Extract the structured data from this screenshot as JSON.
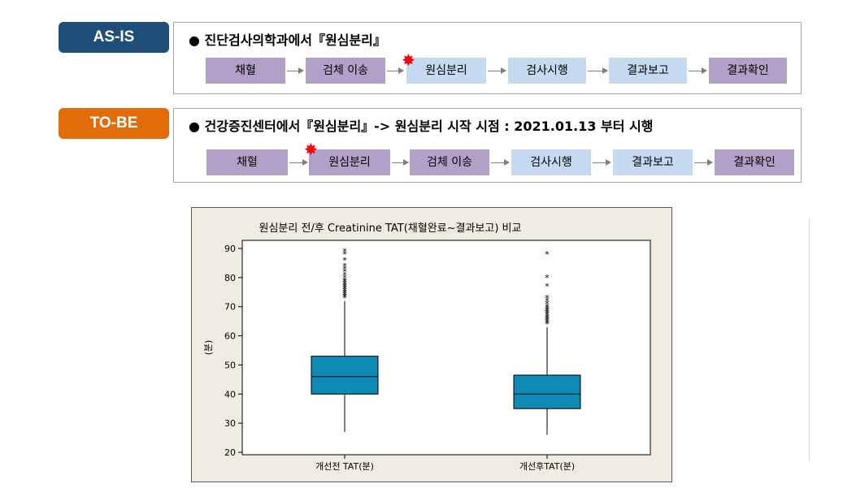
{
  "asis": {
    "badge": "AS-IS",
    "heading": "● 진단검사의학과에서『원심분리』",
    "steps": [
      "채혈",
      "검체 이송",
      "원심분리",
      "검사시행",
      "결과보고",
      "결과확인"
    ]
  },
  "tobe": {
    "badge": "TO-BE",
    "heading": "● 건강증진센터에서『원심분리』-> 원심분리 시작 시점 :  2021.01.13 부터 시행",
    "steps": [
      "채혈",
      "원심분리",
      "검체 이송",
      "검사시행",
      "결과보고",
      "결과확인"
    ]
  },
  "colors": {
    "asis_badge": "#1f4e79",
    "tobe_badge": "#e36c0a",
    "step_purple": "#b1a0c7",
    "step_blue": "#c5d9f1",
    "box": "#0f8ab5",
    "star": "#ff0000"
  },
  "icons": {
    "marker": "red-star-icon"
  },
  "chart_data": {
    "type": "boxplot",
    "title": "원심분리 전/후 Creatinine TAT(채혈완료~결과보고) 비교",
    "xlabel": "",
    "ylabel": "(분)",
    "ylim": [
      20,
      92
    ],
    "yticks": [
      20,
      30,
      40,
      50,
      60,
      70,
      80,
      90
    ],
    "grid": false,
    "categories": [
      "개선전 TAT(분)",
      "개선후TAT(분)"
    ],
    "series": [
      {
        "whisker_low": 27,
        "q1": 40,
        "median": 46,
        "q3": 53,
        "whisker_high": 72,
        "outliers": [
          73,
          73.5,
          74,
          74.5,
          75,
          75.5,
          76,
          76.5,
          77,
          77.5,
          78,
          78.5,
          79,
          80,
          81,
          82,
          83,
          84,
          86,
          88,
          89
        ]
      },
      {
        "whisker_low": 26,
        "q1": 35,
        "median": 40,
        "q3": 46.5,
        "whisker_high": 63,
        "outliers": [
          64,
          64.5,
          65,
          65.5,
          66,
          66.5,
          67,
          67.5,
          68,
          68.5,
          69,
          69.5,
          70,
          71,
          72,
          73,
          77,
          80,
          88
        ]
      }
    ]
  }
}
